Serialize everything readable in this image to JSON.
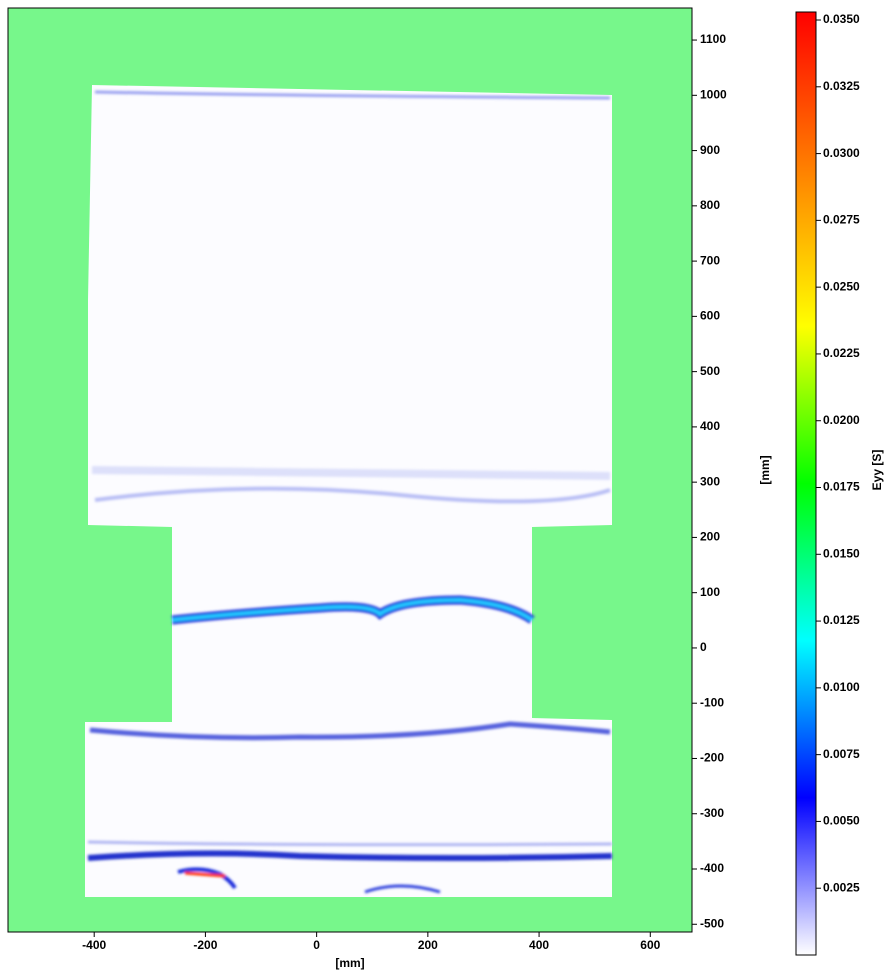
{
  "chart_data": {
    "type": "contour",
    "xlabel": "[mm]",
    "ylabel": "[mm]",
    "xlim": [
      -555,
      675
    ],
    "xticks": [
      -400,
      -200,
      0,
      200,
      400,
      600
    ],
    "ylim": [
      -514,
      1158
    ],
    "yticks": [
      1100,
      1000,
      900,
      800,
      700,
      600,
      500,
      400,
      300,
      200,
      100,
      0,
      -100,
      -200,
      -300,
      -400,
      -500
    ],
    "colorbar": {
      "label": "Eyy [S]",
      "lim": [
        0,
        0.0353
      ],
      "colormap": [
        "#ffffff",
        "#0000ff",
        "#00ffff",
        "#00ff00",
        "#ffff00",
        "#ff8000",
        "#ff0000"
      ],
      "ticks": [
        {
          "value": 0.035,
          "label": "0.0350"
        },
        {
          "value": 0.0325,
          "label": "0.0325"
        },
        {
          "value": 0.03,
          "label": "0.0300"
        },
        {
          "value": 0.0275,
          "label": "0.0275"
        },
        {
          "value": 0.025,
          "label": "0.0250"
        },
        {
          "value": 0.0225,
          "label": "0.0225"
        },
        {
          "value": 0.02,
          "label": "0.0200"
        },
        {
          "value": 0.0175,
          "label": "0.0175"
        },
        {
          "value": 0.015,
          "label": "0.0150"
        },
        {
          "value": 0.0125,
          "label": "0.0125"
        },
        {
          "value": 0.01,
          "label": "0.0100"
        },
        {
          "value": 0.0075,
          "label": "0.0075"
        },
        {
          "value": 0.005,
          "label": "0.0050"
        },
        {
          "value": 0.0025,
          "label": "0.0025"
        }
      ]
    },
    "background_color": "#77f78b"
  }
}
